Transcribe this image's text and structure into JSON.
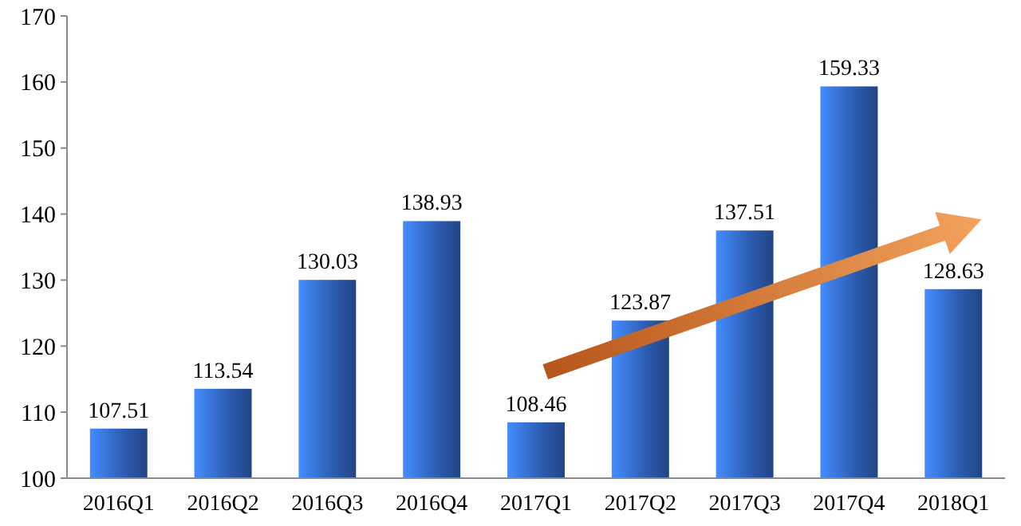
{
  "chart_data": {
    "type": "bar",
    "categories": [
      "2016Q1",
      "2016Q2",
      "2016Q3",
      "2016Q4",
      "2017Q1",
      "2017Q2",
      "2017Q3",
      "2017Q4",
      "2018Q1"
    ],
    "values": [
      107.51,
      113.54,
      130.03,
      138.93,
      108.46,
      123.87,
      137.51,
      159.33,
      128.63
    ],
    "color": "#2c5cb0",
    "ylim": [
      100,
      170
    ],
    "yticks": [
      100,
      110,
      120,
      130,
      140,
      150,
      160,
      170
    ],
    "data_labels": true,
    "grid": false
  }
}
